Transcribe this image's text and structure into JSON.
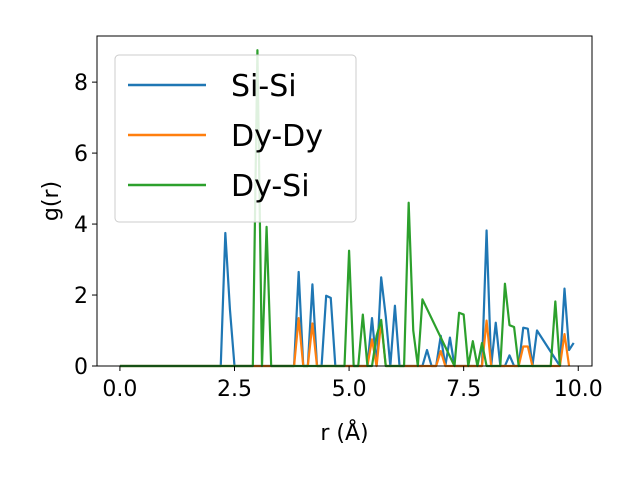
{
  "chart_data": {
    "type": "line",
    "xlabel": "r (Å)",
    "ylabel": "g(r)",
    "xlim": [
      -0.5,
      10.3
    ],
    "ylim": [
      0,
      9.3
    ],
    "xticks": [
      0.0,
      2.5,
      5.0,
      7.5,
      10.0
    ],
    "xtick_labels": [
      "0.0",
      "2.5",
      "5.0",
      "7.5",
      "10.0"
    ],
    "yticks": [
      0,
      2,
      4,
      6,
      8
    ],
    "ytick_labels": [
      "0",
      "2",
      "4",
      "6",
      "8"
    ],
    "legend_position": "top-left",
    "grid": false,
    "series": [
      {
        "name": "Si-Si",
        "color": "#1f77b4",
        "x": [
          0.0,
          2.2,
          2.3,
          2.4,
          2.5,
          3.8,
          3.9,
          4.0,
          4.1,
          4.2,
          4.3,
          4.4,
          4.5,
          4.6,
          4.7,
          5.4,
          5.5,
          5.6,
          5.7,
          5.8,
          5.9,
          6.0,
          6.1,
          6.6,
          6.7,
          6.8,
          6.9,
          7.0,
          7.1,
          7.2,
          7.3,
          7.8,
          7.9,
          8.0,
          8.1,
          8.2,
          8.3,
          8.4,
          8.5,
          8.6,
          8.7,
          8.8,
          8.9,
          9.0,
          9.1,
          9.6,
          9.7,
          9.8,
          9.9
        ],
        "y": [
          0.0,
          0.0,
          3.75,
          1.6,
          0.0,
          0.0,
          2.65,
          0.0,
          0.0,
          2.3,
          0.0,
          0.0,
          1.98,
          1.92,
          0.0,
          0.0,
          1.35,
          0.0,
          2.5,
          1.4,
          0.0,
          1.7,
          0.0,
          0.0,
          0.45,
          0.0,
          0.0,
          0.85,
          0.0,
          0.8,
          0.0,
          0.0,
          0.0,
          3.82,
          0.0,
          1.22,
          0.0,
          0.0,
          0.3,
          0.0,
          0.0,
          1.08,
          1.05,
          0.0,
          1.0,
          0.0,
          2.18,
          0.45,
          0.65
        ]
      },
      {
        "name": "Dy-Dy",
        "color": "#ff7f0e",
        "x": [
          0.0,
          3.8,
          3.9,
          4.0,
          4.1,
          4.2,
          4.3,
          5.4,
          5.5,
          5.6,
          5.7,
          5.8,
          6.8,
          6.9,
          7.0,
          7.1,
          7.8,
          7.9,
          8.0,
          8.1,
          8.6,
          8.7,
          8.8,
          8.9,
          9.0,
          9.6,
          9.7,
          9.8
        ],
        "y": [
          0.0,
          0.0,
          1.35,
          0.0,
          0.0,
          1.2,
          0.0,
          0.0,
          0.75,
          0.0,
          1.25,
          0.0,
          0.0,
          0.0,
          0.42,
          0.0,
          0.0,
          0.0,
          1.28,
          0.0,
          0.0,
          0.0,
          0.55,
          0.55,
          0.0,
          0.0,
          0.9,
          0.0
        ]
      },
      {
        "name": "Dy-Si",
        "color": "#2ca02c",
        "x": [
          0.0,
          2.9,
          3.0,
          3.1,
          3.2,
          3.3,
          4.9,
          5.0,
          5.1,
          5.2,
          5.3,
          5.4,
          5.5,
          5.6,
          5.7,
          5.8,
          6.2,
          6.3,
          6.4,
          6.5,
          6.6,
          7.3,
          7.4,
          7.5,
          7.6,
          7.7,
          7.8,
          7.9,
          8.0,
          8.3,
          8.4,
          8.5,
          8.6,
          8.7,
          8.8,
          9.3,
          9.4,
          9.5,
          9.6
        ],
        "y": [
          0.0,
          0.0,
          8.9,
          0.0,
          3.92,
          0.0,
          0.0,
          3.25,
          0.0,
          0.0,
          1.45,
          0.0,
          0.0,
          0.85,
          1.3,
          0.0,
          0.0,
          4.6,
          1.0,
          0.0,
          1.88,
          0.0,
          1.5,
          1.45,
          0.0,
          0.7,
          0.0,
          0.65,
          0.0,
          0.0,
          2.32,
          1.15,
          1.1,
          0.0,
          0.0,
          0.0,
          0.0,
          1.82,
          0.0
        ]
      }
    ]
  }
}
